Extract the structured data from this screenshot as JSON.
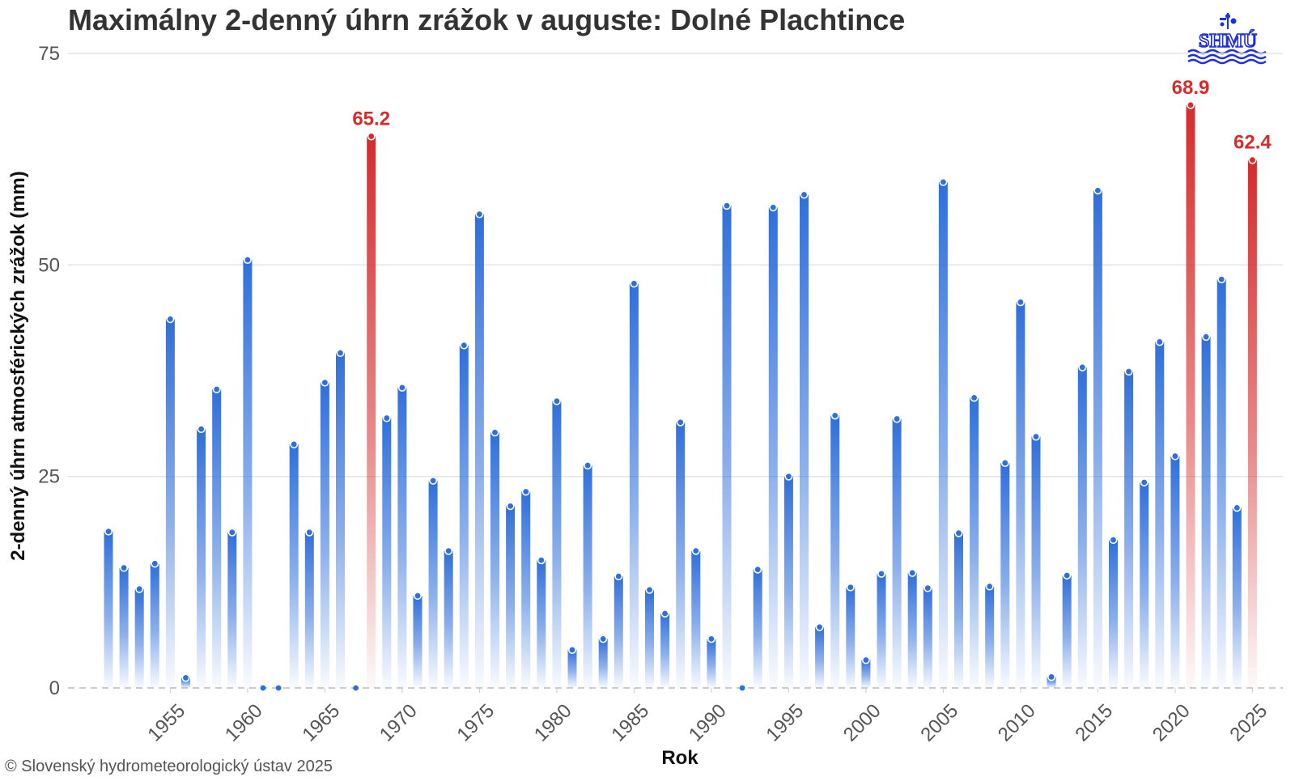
{
  "title": "Maximálny 2-denný úhrn zrážok v auguste: Dolné Plachtince",
  "credit": "© Slovenský hydrometeorologický ústav 2025",
  "logo_text": "SHMÚ",
  "colors": {
    "normal": "#2f6fdb",
    "highlight": "#d62b2b",
    "text": "#333333"
  },
  "chart_data": {
    "type": "bar",
    "xlabel": "Rok",
    "ylabel": "2-denný úhrn atmosférických zrážok (mm)",
    "ylim": [
      0,
      75
    ],
    "yticks": [
      0,
      25,
      50,
      75
    ],
    "xticks": [
      1955,
      1960,
      1965,
      1970,
      1975,
      1980,
      1985,
      1990,
      1995,
      2000,
      2005,
      2010,
      2015,
      2020,
      2025
    ],
    "grid": true,
    "x": [
      1951,
      1952,
      1953,
      1954,
      1955,
      1956,
      1957,
      1958,
      1959,
      1960,
      1961,
      1962,
      1963,
      1964,
      1965,
      1966,
      1967,
      1968,
      1969,
      1970,
      1971,
      1972,
      1973,
      1974,
      1975,
      1976,
      1977,
      1978,
      1979,
      1980,
      1981,
      1982,
      1983,
      1984,
      1985,
      1986,
      1987,
      1988,
      1989,
      1990,
      1991,
      1992,
      1993,
      1994,
      1995,
      1996,
      1997,
      1998,
      1999,
      2000,
      2001,
      2002,
      2003,
      2004,
      2005,
      2006,
      2007,
      2008,
      2009,
      2010,
      2011,
      2012,
      2013,
      2014,
      2015,
      2016,
      2017,
      2018,
      2019,
      2020,
      2021,
      2022,
      2023,
      2024,
      2025
    ],
    "values": [
      18.5,
      14.2,
      11.7,
      14.7,
      43.6,
      1.2,
      30.6,
      35.3,
      18.4,
      50.6,
      0,
      0,
      28.8,
      18.4,
      36.1,
      39.6,
      0,
      65.2,
      31.9,
      35.5,
      10.9,
      24.5,
      16.2,
      40.5,
      56.0,
      30.2,
      21.5,
      23.2,
      15.1,
      33.9,
      4.5,
      26.3,
      5.8,
      13.2,
      47.8,
      11.6,
      8.8,
      31.4,
      16.2,
      5.8,
      57.0,
      0,
      14.0,
      56.8,
      25.0,
      58.3,
      7.2,
      32.2,
      11.9,
      3.3,
      13.5,
      31.8,
      13.6,
      11.8,
      59.8,
      18.3,
      34.3,
      12.0,
      26.6,
      45.6,
      29.7,
      1.3,
      13.3,
      37.9,
      58.8,
      17.5,
      37.4,
      24.3,
      40.9,
      27.4,
      68.9,
      41.5,
      48.3,
      21.3,
      62.4
    ],
    "highlighted": [
      {
        "year": 1968,
        "value": 65.2,
        "label": "65.2"
      },
      {
        "year": 2021,
        "value": 68.9,
        "label": "68.9"
      },
      {
        "year": 2025,
        "value": 62.4,
        "label": "62.4"
      }
    ]
  }
}
